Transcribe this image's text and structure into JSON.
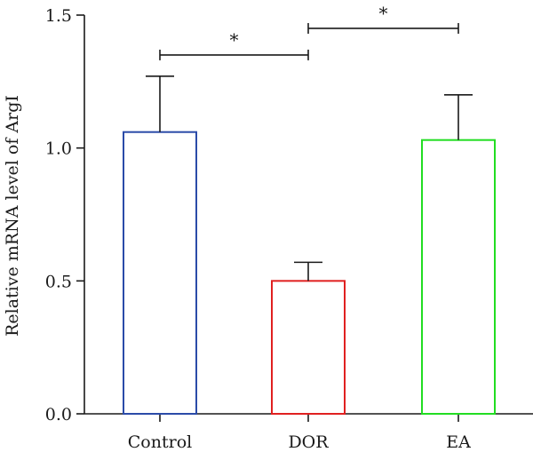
{
  "chart_data": {
    "type": "bar",
    "title": "",
    "xlabel": "",
    "ylabel": "Relative mRNA level of ArgI",
    "categories": [
      "Control",
      "DOR",
      "EA"
    ],
    "values": [
      1.06,
      0.5,
      1.03
    ],
    "errors": [
      0.21,
      0.07,
      0.17
    ],
    "bar_colors": [
      "#2b4ba8",
      "#e02020",
      "#22dd22"
    ],
    "ylim": [
      0,
      1.5
    ],
    "yticks": [
      0.0,
      0.5,
      1.0,
      1.5
    ],
    "ytick_labels": [
      "0.0",
      "0.5",
      "1.0",
      "1.5"
    ],
    "grid": false,
    "significance": [
      {
        "from": 0,
        "to": 1,
        "y": 1.35,
        "label": "*"
      },
      {
        "from": 1,
        "to": 2,
        "y": 1.45,
        "label": "*"
      }
    ]
  }
}
